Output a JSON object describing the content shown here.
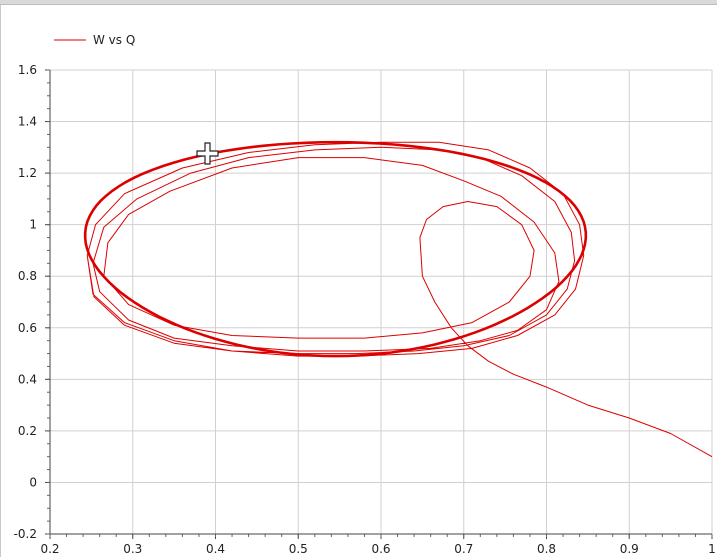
{
  "chart_data": {
    "type": "line",
    "title": "",
    "xlabel": "",
    "ylabel": "",
    "xlim": [
      0.2,
      1.0
    ],
    "ylim": [
      -0.2,
      1.6
    ],
    "grid": true,
    "legend_position": "top-left",
    "x_ticks": [
      "0.2",
      "0.3",
      "0.4",
      "0.5",
      "0.6",
      "0.7",
      "0.8",
      "0.9",
      "1"
    ],
    "y_ticks": [
      "-0.2",
      "0",
      "0.2",
      "0.4",
      "0.6",
      "0.8",
      "1",
      "1.2",
      "1.4",
      "1.6"
    ],
    "line_color": "#dd0000",
    "series": [
      {
        "name": "W vs Q",
        "x": [
          1.0,
          0.95,
          0.9,
          0.85,
          0.8,
          0.76,
          0.73,
          0.705,
          0.685,
          0.665,
          0.65,
          0.647,
          0.655,
          0.675,
          0.705,
          0.74,
          0.77,
          0.785,
          0.78,
          0.755,
          0.71,
          0.65,
          0.58,
          0.5,
          0.42,
          0.35,
          0.295,
          0.265,
          0.27,
          0.295,
          0.345,
          0.42,
          0.5,
          0.58,
          0.65,
          0.7,
          0.745,
          0.785,
          0.81,
          0.815,
          0.8,
          0.765,
          0.72,
          0.66,
          0.58,
          0.5,
          0.42,
          0.35,
          0.295,
          0.26,
          0.252,
          0.265,
          0.305,
          0.37,
          0.44,
          0.52,
          0.6,
          0.67,
          0.72,
          0.77,
          0.81,
          0.83,
          0.834,
          0.825,
          0.8,
          0.755,
          0.7,
          0.64,
          0.57,
          0.5,
          0.42,
          0.35,
          0.29,
          0.253,
          0.245,
          0.255,
          0.29,
          0.36,
          0.44,
          0.52,
          0.6,
          0.67,
          0.73,
          0.78,
          0.82,
          0.84,
          0.845,
          0.835,
          0.81,
          0.765,
          0.71,
          0.645,
          0.57,
          0.5,
          0.42,
          0.35,
          0.29,
          0.252,
          0.245
        ],
        "y": [
          0.1,
          0.19,
          0.25,
          0.3,
          0.37,
          0.42,
          0.47,
          0.53,
          0.6,
          0.7,
          0.8,
          0.95,
          1.02,
          1.07,
          1.09,
          1.07,
          1.0,
          0.9,
          0.8,
          0.7,
          0.62,
          0.58,
          0.56,
          0.56,
          0.57,
          0.61,
          0.69,
          0.8,
          0.93,
          1.04,
          1.13,
          1.22,
          1.26,
          1.26,
          1.23,
          1.17,
          1.11,
          1.01,
          0.89,
          0.78,
          0.67,
          0.59,
          0.55,
          0.52,
          0.51,
          0.51,
          0.53,
          0.56,
          0.63,
          0.74,
          0.85,
          0.99,
          1.1,
          1.2,
          1.26,
          1.29,
          1.3,
          1.29,
          1.26,
          1.19,
          1.09,
          0.97,
          0.86,
          0.75,
          0.65,
          0.57,
          0.53,
          0.51,
          0.5,
          0.5,
          0.51,
          0.54,
          0.61,
          0.72,
          0.88,
          1.0,
          1.12,
          1.22,
          1.28,
          1.31,
          1.32,
          1.32,
          1.29,
          1.22,
          1.12,
          1.0,
          0.88,
          0.75,
          0.65,
          0.57,
          0.52,
          0.5,
          0.49,
          0.49,
          0.51,
          0.55,
          0.62,
          0.73,
          0.88
        ]
      }
    ]
  }
}
